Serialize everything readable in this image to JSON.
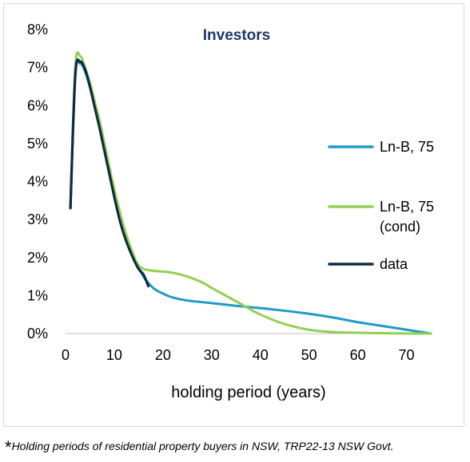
{
  "chart_data": {
    "type": "line",
    "title": "Investors",
    "xlabel": "holding period (years)",
    "ylabel": "",
    "xlim": [
      0,
      75
    ],
    "ylim": [
      0,
      8
    ],
    "x_ticks": [
      "0",
      "10",
      "20",
      "30",
      "40",
      "50",
      "60",
      "70"
    ],
    "y_ticks": [
      "0%",
      "1%",
      "2%",
      "3%",
      "4%",
      "5%",
      "6%",
      "7%",
      "8%"
    ],
    "legend_position": "right",
    "colors": {
      "title": "#1f3864",
      "ln_b": "#1f9bc6",
      "ln_b_cond": "#92d050",
      "data": "#0d2b45"
    },
    "series": [
      {
        "name": "Ln-B, 75",
        "x": [
          1,
          2,
          3,
          4,
          5,
          6,
          7,
          8,
          10,
          12,
          14,
          16,
          18,
          20,
          22,
          25,
          30,
          35,
          40,
          45,
          50,
          55,
          60,
          65,
          70,
          75
        ],
        "y": [
          3.3,
          6.8,
          7.1,
          6.9,
          6.5,
          6.0,
          5.5,
          4.9,
          3.7,
          2.7,
          2.0,
          1.5,
          1.2,
          1.05,
          0.95,
          0.87,
          0.8,
          0.73,
          0.67,
          0.6,
          0.52,
          0.42,
          0.3,
          0.2,
          0.1,
          0.0
        ]
      },
      {
        "name": "Ln-B, 75 (cond)",
        "x": [
          1,
          2,
          3,
          4,
          5,
          6,
          7,
          8,
          10,
          12,
          14,
          15,
          16,
          18,
          20,
          22,
          25,
          28,
          30,
          35,
          40,
          45,
          50,
          55,
          60,
          65,
          70,
          75
        ],
        "y": [
          3.3,
          7.0,
          7.3,
          7.0,
          6.6,
          6.1,
          5.6,
          5.0,
          3.8,
          2.8,
          2.05,
          1.8,
          1.7,
          1.65,
          1.63,
          1.6,
          1.5,
          1.35,
          1.2,
          0.85,
          0.5,
          0.25,
          0.1,
          0.04,
          0.02,
          0.01,
          0.0,
          0.0
        ]
      },
      {
        "name": "data",
        "x": [
          1,
          2,
          3,
          4,
          5,
          6,
          7,
          8,
          9,
          10,
          11,
          12,
          13,
          14,
          15,
          16,
          17
        ],
        "y": [
          3.3,
          6.8,
          7.15,
          6.95,
          6.5,
          5.95,
          5.4,
          4.8,
          4.2,
          3.6,
          3.05,
          2.6,
          2.25,
          1.95,
          1.7,
          1.55,
          1.25
        ]
      }
    ]
  },
  "caption": {
    "marker": "*",
    "text": "Holding periods of residential property buyers in NSW, TRP22-13 NSW Govt."
  }
}
